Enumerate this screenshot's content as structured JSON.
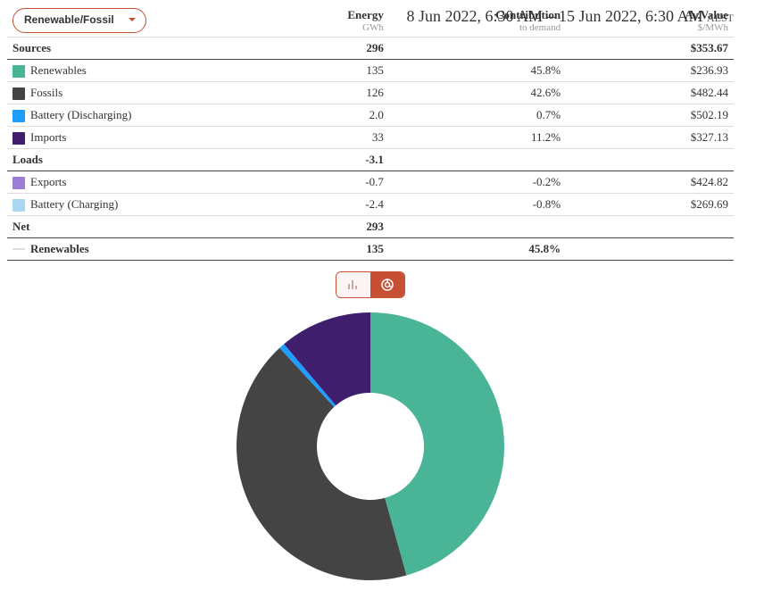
{
  "date_range": "8 Jun 2022, 6:30 AM – 15 Jun 2022, 6:30 AM",
  "timezone": "AEST",
  "selector": {
    "value": "Renewable/Fossil"
  },
  "columns": {
    "energy": {
      "label": "Energy",
      "sub": "GWh"
    },
    "contribution": {
      "label": "Contribution",
      "sub": "to demand"
    },
    "avvalue": {
      "label": "Av.Value",
      "sub": "$/MWh"
    }
  },
  "sections": [
    {
      "title": "Sources",
      "energy": "296",
      "contribution": "",
      "avvalue": "$353.67",
      "rows": [
        {
          "label": "Renewables",
          "color": "#4ab497",
          "energy": "135",
          "contribution": "45.8%",
          "avvalue": "$236.93"
        },
        {
          "label": "Fossils",
          "color": "#444444",
          "energy": "126",
          "contribution": "42.6%",
          "avvalue": "$482.44"
        },
        {
          "label": "Battery (Discharging)",
          "color": "#1f9dff",
          "energy": "2.0",
          "contribution": "0.7%",
          "avvalue": "$502.19"
        },
        {
          "label": "Imports",
          "color": "#3f1e6d",
          "energy": "33",
          "contribution": "11.2%",
          "avvalue": "$327.13"
        }
      ]
    },
    {
      "title": "Loads",
      "energy": "-3.1",
      "contribution": "",
      "avvalue": "",
      "rows": [
        {
          "label": "Exports",
          "color": "#9d7ed6",
          "energy": "-0.7",
          "contribution": "-0.2%",
          "avvalue": "$424.82"
        },
        {
          "label": "Battery (Charging)",
          "color": "#a9d6f0",
          "energy": "-2.4",
          "contribution": "-0.8%",
          "avvalue": "$269.69"
        }
      ]
    }
  ],
  "net": {
    "label": "Net",
    "energy": "293"
  },
  "summary": {
    "label": "Renewables",
    "color": "#ddd",
    "energy": "135",
    "contribution": "45.8%"
  },
  "chart": {
    "type": "donut",
    "size": 300,
    "inner_radius_pct": 40,
    "background": "#ffffff",
    "slices": [
      {
        "label": "Renewables",
        "value": 45.8,
        "color": "#4ab497"
      },
      {
        "label": "Fossils",
        "value": 42.6,
        "color": "#444444"
      },
      {
        "label": "Battery (Discharging)",
        "value": 0.7,
        "color": "#1f9dff"
      },
      {
        "label": "Imports",
        "value": 11.2,
        "color": "#3f1e6d"
      }
    ],
    "start_angle_deg": -90,
    "direction": "clockwise"
  }
}
